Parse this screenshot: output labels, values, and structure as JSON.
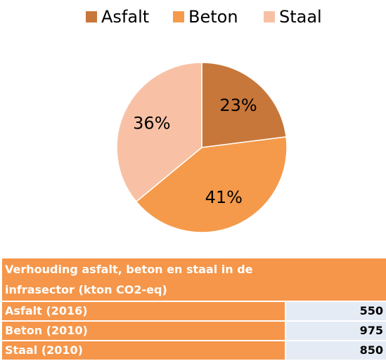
{
  "chart_data": {
    "type": "pie",
    "categories": [
      "Asfalt",
      "Beton",
      "Staal"
    ],
    "values": [
      23,
      41,
      36
    ],
    "value_labels": [
      "23%",
      "41%",
      "36%"
    ],
    "colors": [
      "#c8773a",
      "#f59a4a",
      "#f8c1a5"
    ],
    "legend": "top"
  },
  "table": {
    "title": "Verhouding asfalt, beton en staal in de infrasector (kton CO2-eq)",
    "rows": [
      [
        "Asfalt (2016)",
        "550"
      ],
      [
        "Beton (2010)",
        "975"
      ],
      [
        "Staal (2010)",
        "850"
      ]
    ]
  }
}
